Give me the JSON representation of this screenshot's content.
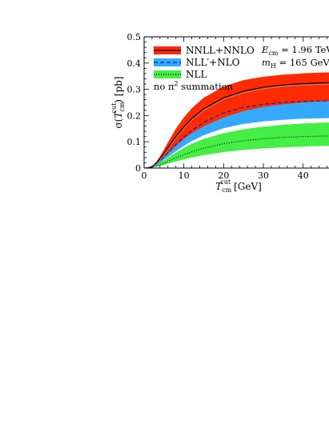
{
  "chart_data": {
    "type": "line",
    "title": "",
    "xlabel_main": "T",
    "xlabel_sub": "cm",
    "xlabel_sup": "cut",
    "xlabel_unit": "[GeV]",
    "ylabel_prefix": "σ(",
    "ylabel_main": "T",
    "ylabel_sub": "cm",
    "ylabel_sup": "cut",
    "ylabel_suffix": ") [pb]",
    "xlim": [
      0,
      48
    ],
    "ylim": [
      0,
      0.5
    ],
    "x_ticks": [
      "0",
      "10",
      "20",
      "30",
      "40"
    ],
    "y_ticks": [
      "0",
      "0.1",
      "0.2",
      "0.3",
      "0.4",
      "0.5"
    ],
    "grid": false,
    "legend_position": "top-left",
    "annotations": {
      "ecm_label": "E",
      "ecm_sub": "cm",
      "ecm_value": " = 1.96 TeV",
      "mh_label": "m",
      "mh_sub": "H",
      "mh_value": " = 165 GeV",
      "note_prefix": "no π",
      "note_sup": "2",
      "note_suffix": " summation"
    },
    "x": [
      0,
      1,
      2,
      3,
      4,
      5,
      6,
      8,
      10,
      12,
      15,
      20,
      25,
      30,
      35,
      40,
      45,
      48
    ],
    "series": [
      {
        "name": "NNLL+NNLO",
        "color": "#ff2a00",
        "line_color": "#000000",
        "line_style": "solid",
        "central": [
          0,
          0.001,
          0.006,
          0.018,
          0.036,
          0.056,
          0.078,
          0.12,
          0.157,
          0.189,
          0.226,
          0.268,
          0.293,
          0.308,
          0.317,
          0.322,
          0.325,
          0.326
        ],
        "lower": [
          0,
          0.001,
          0.005,
          0.013,
          0.026,
          0.04,
          0.055,
          0.085,
          0.111,
          0.133,
          0.159,
          0.193,
          0.217,
          0.233,
          0.243,
          0.25,
          0.254,
          0.256
        ],
        "upper": [
          0,
          0.001,
          0.007,
          0.022,
          0.045,
          0.07,
          0.098,
          0.15,
          0.193,
          0.228,
          0.268,
          0.311,
          0.335,
          0.348,
          0.356,
          0.361,
          0.364,
          0.365
        ]
      },
      {
        "name": "NLL′+NLO",
        "color": "#33aaff",
        "line_color": "#0022bb",
        "line_style": "dashed",
        "central": [
          0,
          0.001,
          0.005,
          0.014,
          0.027,
          0.042,
          0.058,
          0.089,
          0.118,
          0.143,
          0.174,
          0.21,
          0.231,
          0.243,
          0.25,
          0.254,
          0.256,
          0.257
        ],
        "lower": [
          0,
          0.001,
          0.004,
          0.01,
          0.02,
          0.031,
          0.042,
          0.064,
          0.085,
          0.103,
          0.125,
          0.152,
          0.168,
          0.178,
          0.184,
          0.188,
          0.19,
          0.191
        ],
        "upper": [
          0,
          0.001,
          0.006,
          0.018,
          0.035,
          0.054,
          0.075,
          0.115,
          0.152,
          0.183,
          0.219,
          0.254,
          0.272,
          0.28,
          0.285,
          0.288,
          0.289,
          0.29
        ]
      },
      {
        "name": "NLL",
        "color": "#44ee44",
        "line_color": "#000000",
        "line_style": "dotted",
        "central": [
          0,
          0.001,
          0.003,
          0.007,
          0.013,
          0.019,
          0.026,
          0.039,
          0.051,
          0.062,
          0.076,
          0.093,
          0.104,
          0.112,
          0.117,
          0.12,
          0.122,
          0.123
        ],
        "lower": [
          0,
          0.0,
          0.002,
          0.005,
          0.008,
          0.012,
          0.017,
          0.025,
          0.033,
          0.04,
          0.049,
          0.061,
          0.069,
          0.075,
          0.079,
          0.082,
          0.084,
          0.085
        ],
        "upper": [
          0,
          0.001,
          0.004,
          0.011,
          0.02,
          0.03,
          0.04,
          0.059,
          0.077,
          0.092,
          0.111,
          0.133,
          0.148,
          0.158,
          0.165,
          0.17,
          0.173,
          0.174
        ]
      }
    ]
  }
}
